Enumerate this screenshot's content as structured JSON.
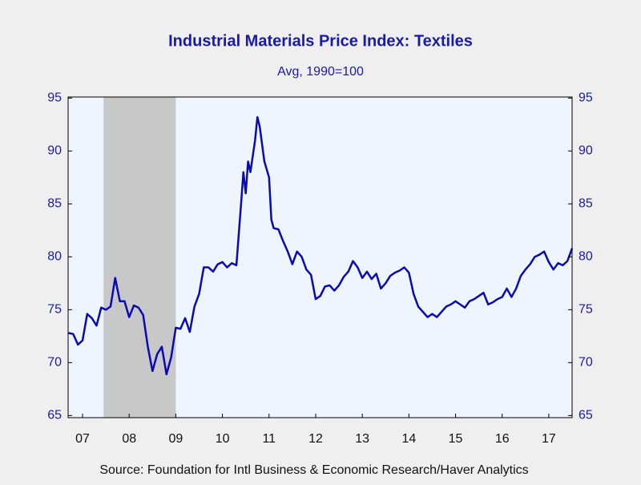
{
  "chart_data": {
    "type": "line",
    "title": "Industrial Materials Price Index: Textiles",
    "subtitle": "Avg, 1990=100",
    "source": "Source:  Foundation for Intl Business & Economic Research/Haver Analytics",
    "color": "#0a0ab4",
    "x": [
      2007.2,
      2007.3,
      2007.4,
      2007.5,
      2007.6,
      2007.7,
      2007.8,
      2007.9,
      2008.0,
      2008.1,
      2008.2,
      2008.3,
      2008.4,
      2008.5,
      2008.6,
      2008.7,
      2008.8,
      2008.9,
      2009.0,
      2009.1,
      2009.2,
      2009.3,
      2009.4,
      2009.5,
      2009.6,
      2009.7,
      2009.8,
      2009.9,
      2010.0,
      2010.1,
      2010.2,
      2010.3,
      2010.4,
      2010.5,
      2010.6,
      2010.7,
      2010.8,
      2010.9,
      2010.95,
      2011.0,
      2011.05,
      2011.1,
      2011.2,
      2011.25,
      2011.3,
      2011.4,
      2011.5,
      2011.55,
      2011.6,
      2011.7,
      2011.8,
      2011.9,
      2012.0,
      2012.1,
      2012.2,
      2012.3,
      2012.4,
      2012.5,
      2012.6,
      2012.7,
      2012.8,
      2012.9,
      2013.0,
      2013.1,
      2013.2,
      2013.3,
      2013.4,
      2013.5,
      2013.6,
      2013.7,
      2013.8,
      2013.9,
      2014.0,
      2014.1,
      2014.2,
      2014.3,
      2014.4,
      2014.5,
      2014.6,
      2014.7,
      2014.8,
      2014.9,
      2015.0,
      2015.1,
      2015.2,
      2015.3,
      2015.4,
      2015.5,
      2015.6,
      2015.7,
      2015.8,
      2015.9,
      2016.0,
      2016.1,
      2016.2,
      2016.3,
      2016.4,
      2016.5,
      2016.6,
      2016.7,
      2016.8,
      2016.9,
      2017.0,
      2017.1,
      2017.2,
      2017.3,
      2017.4,
      2017.5,
      2017.6,
      2017.7,
      2017.8,
      2017.9,
      2018.0
    ],
    "values": [
      72.8,
      72.7,
      71.7,
      72.1,
      74.6,
      74.2,
      73.5,
      75.2,
      75.0,
      75.3,
      78.0,
      75.8,
      75.8,
      74.3,
      75.4,
      75.2,
      74.5,
      71.5,
      69.2,
      70.8,
      71.5,
      68.9,
      70.5,
      73.3,
      73.2,
      74.2,
      72.9,
      75.3,
      76.5,
      79.0,
      79.0,
      78.6,
      79.3,
      79.5,
      79.0,
      79.4,
      79.2,
      85.0,
      88.0,
      86.0,
      89.0,
      88.0,
      91.0,
      93.2,
      92.3,
      89.0,
      87.5,
      83.5,
      82.7,
      82.6,
      81.5,
      80.5,
      79.3,
      80.5,
      80.0,
      78.8,
      78.3,
      76.0,
      76.3,
      77.2,
      77.3,
      76.8,
      77.3,
      78.1,
      78.6,
      79.6,
      79.0,
      78.0,
      78.6,
      77.9,
      78.4,
      77.0,
      77.5,
      78.2,
      78.5,
      78.7,
      79.0,
      78.5,
      76.5,
      75.3,
      74.8,
      74.3,
      74.6,
      74.3,
      74.8,
      75.3,
      75.5,
      75.8,
      75.5,
      75.2,
      75.8,
      76.0,
      76.3,
      76.6,
      75.5,
      75.7,
      76.0,
      76.2,
      77.0,
      76.2,
      77.0,
      78.2,
      78.8,
      79.3,
      80.0,
      80.2,
      80.5,
      79.5,
      78.8,
      79.4,
      79.2,
      79.6,
      80.8
    ],
    "xlim": [
      2007.19,
      2018.0
    ],
    "xticks": [
      {
        "value": 2007.5,
        "label": "07"
      },
      {
        "value": 2008.5,
        "label": "08"
      },
      {
        "value": 2009.5,
        "label": "09"
      },
      {
        "value": 2010.5,
        "label": "10"
      },
      {
        "value": 2011.5,
        "label": "11"
      },
      {
        "value": 2012.5,
        "label": "12"
      },
      {
        "value": 2013.5,
        "label": "13"
      },
      {
        "value": 2014.5,
        "label": "14"
      },
      {
        "value": 2015.5,
        "label": "15"
      },
      {
        "value": 2016.5,
        "label": "16"
      },
      {
        "value": 2017.5,
        "label": "17"
      }
    ],
    "ylim": [
      64.8,
      95.1
    ],
    "yticks": [
      65,
      70,
      75,
      80,
      85,
      90,
      95
    ],
    "y2lim": [
      64.8,
      95.1
    ],
    "y2ticks": [
      65,
      70,
      75,
      80,
      85,
      90,
      95
    ],
    "shaded_regions": [
      [
        2007.95,
        2009.5
      ]
    ],
    "shade_color": "#c8c8c8",
    "grid": false
  }
}
